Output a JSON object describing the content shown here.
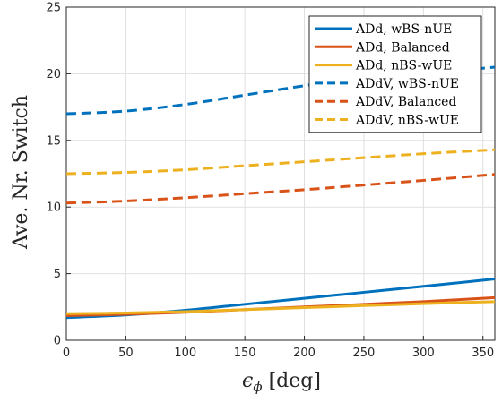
{
  "chart_data": {
    "type": "line",
    "title": "",
    "xlabel": "ϵ",
    "xlabel_sub": "ϕ",
    "xlabel_unit": "[deg]",
    "ylabel": "Ave. Nr. Switch",
    "xlim": [
      0,
      360
    ],
    "ylim": [
      0,
      25
    ],
    "xticks": [
      0,
      50,
      100,
      150,
      200,
      250,
      300,
      350
    ],
    "yticks": [
      0,
      5,
      10,
      15,
      20,
      25
    ],
    "grid": true,
    "legend_position": "top-right",
    "series": [
      {
        "name": "ADd, wBS-nUE",
        "color": "#0072BD",
        "dash": "solid",
        "x": [
          0,
          50,
          100,
          150,
          200,
          250,
          300,
          360
        ],
        "y": [
          1.7,
          1.9,
          2.25,
          2.7,
          3.15,
          3.6,
          4.05,
          4.6
        ]
      },
      {
        "name": "ADd, Balanced",
        "color": "#D95319",
        "dash": "solid",
        "x": [
          0,
          50,
          100,
          150,
          200,
          250,
          300,
          360
        ],
        "y": [
          1.85,
          1.95,
          2.1,
          2.3,
          2.5,
          2.7,
          2.9,
          3.2
        ]
      },
      {
        "name": "ADd, nBS-wUE",
        "color": "#EDB120",
        "dash": "solid",
        "x": [
          0,
          50,
          100,
          150,
          200,
          250,
          300,
          360
        ],
        "y": [
          2.0,
          2.05,
          2.15,
          2.3,
          2.45,
          2.6,
          2.75,
          2.9
        ]
      },
      {
        "name": "ADdV, wBS-nUE",
        "color": "#0072BD",
        "dash": "dashed",
        "x": [
          0,
          50,
          100,
          150,
          200,
          250,
          300,
          360
        ],
        "y": [
          17.0,
          17.2,
          17.7,
          18.4,
          19.1,
          19.7,
          20.0,
          20.5
        ]
      },
      {
        "name": "ADdV, Balanced",
        "color": "#D95319",
        "dash": "dashed",
        "x": [
          0,
          50,
          100,
          150,
          200,
          250,
          300,
          360
        ],
        "y": [
          10.3,
          10.45,
          10.7,
          11.0,
          11.3,
          11.65,
          12.0,
          12.45
        ]
      },
      {
        "name": "ADdV, nBS-wUE",
        "color": "#EDB120",
        "dash": "dashed",
        "x": [
          0,
          50,
          100,
          150,
          200,
          250,
          300,
          360
        ],
        "y": [
          12.5,
          12.6,
          12.8,
          13.1,
          13.4,
          13.7,
          14.0,
          14.3
        ]
      }
    ]
  }
}
